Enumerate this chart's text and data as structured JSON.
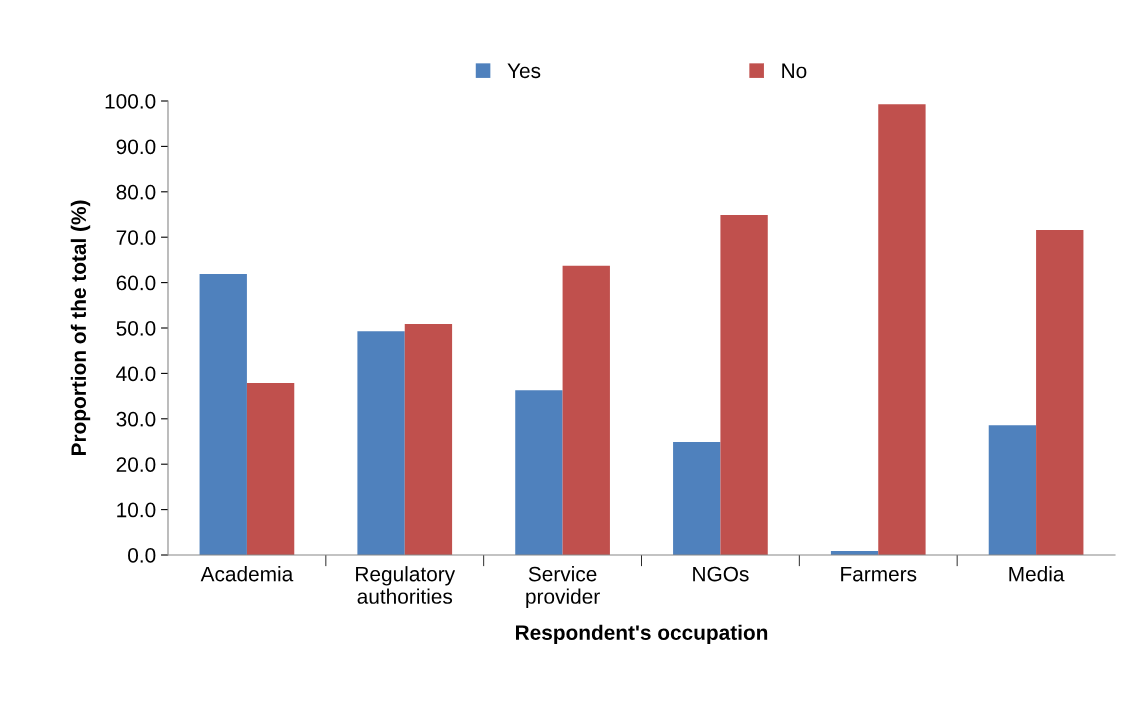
{
  "chart_data": {
    "type": "bar",
    "xlabel": "Respondent's occupation",
    "ylabel": "Proportion of the total (%)",
    "categories": [
      "Academia",
      "Regulatory\nauthorities",
      "Service\nprovider",
      "NGOs",
      "Farmers",
      "Media"
    ],
    "series": [
      {
        "name": "Yes",
        "color": "#4f81bd",
        "values": [
          61.9,
          49.3,
          36.3,
          24.9,
          0.9,
          28.6
        ]
      },
      {
        "name": "No",
        "color": "#c0504d",
        "values": [
          37.9,
          50.9,
          63.7,
          74.9,
          99.3,
          71.6
        ]
      }
    ],
    "ylim": [
      0,
      100
    ],
    "yticks": [
      {
        "value": 0,
        "label": "0.0"
      },
      {
        "value": 10,
        "label": "10.0"
      },
      {
        "value": 20,
        "label": "20.0"
      },
      {
        "value": 30,
        "label": "30.0"
      },
      {
        "value": 40,
        "label": "40.0"
      },
      {
        "value": 50,
        "label": "50.0"
      },
      {
        "value": 60,
        "label": "60.0"
      },
      {
        "value": 70,
        "label": "70.0"
      },
      {
        "value": 80,
        "label": "80.0"
      },
      {
        "value": 90,
        "label": "90.0"
      },
      {
        "value": 100,
        "label": "100.0"
      }
    ],
    "grid": false,
    "legend": "top"
  }
}
